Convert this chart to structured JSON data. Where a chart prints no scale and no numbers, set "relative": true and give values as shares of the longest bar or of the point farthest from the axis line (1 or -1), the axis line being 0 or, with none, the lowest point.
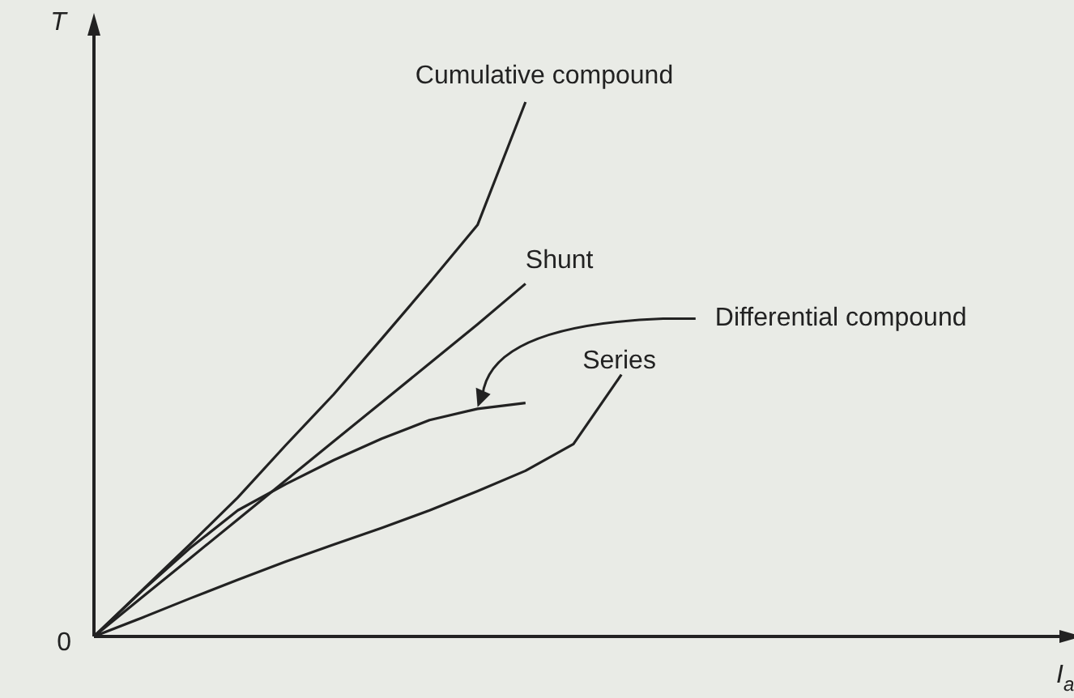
{
  "chart_data": {
    "type": "line",
    "relative": true,
    "xlabel": "I$_{a}$",
    "ylabel": "T",
    "tick_labels": false,
    "legend": false,
    "grid": false,
    "marker": "none",
    "line_style": "solid",
    "annotations": [
      "0"
    ],
    "categories": [
      null,
      null,
      null,
      null,
      null,
      null,
      null,
      null,
      null,
      null,
      null,
      null,
      null,
      null,
      null,
      null,
      null,
      null,
      null,
      null,
      null
    ],
    "series": [
      {
        "name": "Cumulative compound",
        "color": "#222222",
        "values": [
          0,
          0.086,
          0.172,
          0.26,
          0.358,
          0.453,
          0.557,
          0.662,
          0.77,
          1.0,
          null,
          null,
          null,
          null,
          null,
          null,
          null,
          null,
          null,
          null,
          null
        ]
      },
      {
        "name": "Shunt",
        "color": "#222222",
        "values": [
          0,
          0.073,
          0.146,
          0.219,
          0.292,
          0.365,
          0.438,
          0.511,
          0.584,
          0.66,
          null,
          null,
          null,
          null,
          null,
          null,
          null,
          null,
          null,
          null,
          null
        ]
      },
      {
        "name": "Differential compound",
        "color": "#222222",
        "values": [
          0,
          0.085,
          0.165,
          0.236,
          0.285,
          0.33,
          0.37,
          0.405,
          0.426,
          0.437,
          null,
          null,
          null,
          null,
          null,
          null,
          null,
          null,
          null,
          null,
          null
        ]
      },
      {
        "name": "Series",
        "color": "#222222",
        "values": [
          0,
          0.035,
          0.071,
          0.106,
          0.14,
          0.172,
          0.203,
          0.236,
          0.272,
          0.31,
          0.36,
          0.49,
          null,
          null,
          null,
          null,
          null,
          null,
          null,
          null,
          null
        ]
      }
    ]
  }
}
